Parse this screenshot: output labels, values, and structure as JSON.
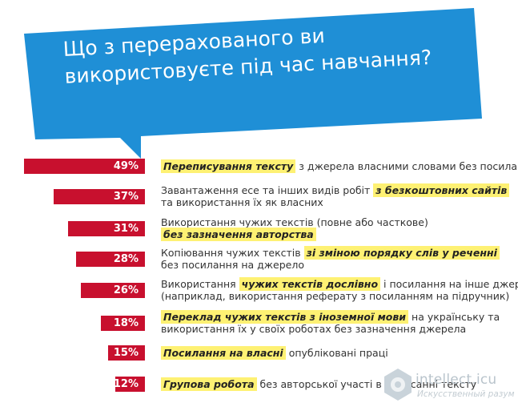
{
  "title_lines": [
    "Що з перерахованого ви",
    "використовуєте під час навчання?"
  ],
  "chart_data": {
    "type": "bar",
    "orientation": "horizontal",
    "unit": "%",
    "xlim": [
      0,
      50
    ],
    "grid": false,
    "legend": "none",
    "bar_color": "#c8102e",
    "highlight_color": "#fef173",
    "bars": [
      {
        "value": 49,
        "label": "49%",
        "lines": [
          [
            {
              "t": "Переписування тексту",
              "h": true
            },
            {
              "t": " з джерела власними словами без посилань",
              "h": false
            }
          ]
        ]
      },
      {
        "value": 37,
        "label": "37%",
        "lines": [
          [
            {
              "t": "Завантаження есе та інших видів робіт ",
              "h": false
            },
            {
              "t": "з безкоштовних сайтів",
              "h": true
            }
          ],
          [
            {
              "t": "та використання їх як власних",
              "h": false
            }
          ]
        ]
      },
      {
        "value": 31,
        "label": "31%",
        "lines": [
          [
            {
              "t": "Використання чужих текстів (повне або часткове)",
              "h": false
            }
          ],
          [
            {
              "t": "без зазначення авторства",
              "h": true
            }
          ]
        ]
      },
      {
        "value": 28,
        "label": "28%",
        "lines": [
          [
            {
              "t": "Копіювання чужих текстів ",
              "h": false
            },
            {
              "t": "зі зміною порядку слів у реченні",
              "h": true
            }
          ],
          [
            {
              "t": "без посилання на джерело",
              "h": false
            }
          ]
        ]
      },
      {
        "value": 26,
        "label": "26%",
        "lines": [
          [
            {
              "t": "Використання ",
              "h": false
            },
            {
              "t": "чужих текстів дослівно",
              "h": true
            },
            {
              "t": " і посилання на інше джерело",
              "h": false
            }
          ],
          [
            {
              "t": "(наприклад, використання реферату з посиланням на підручник)",
              "h": false
            }
          ]
        ]
      },
      {
        "value": 18,
        "label": "18%",
        "lines": [
          [
            {
              "t": "Переклад чужих текстів з іноземної мови",
              "h": true
            },
            {
              "t": " на українську та",
              "h": false
            }
          ],
          [
            {
              "t": "використання їх у своїх роботах без зазначення джерела",
              "h": false
            }
          ]
        ]
      },
      {
        "value": 15,
        "label": "15%",
        "lines": [
          [
            {
              "t": "Посилання на власні",
              "h": true
            },
            {
              "t": " опубліковані праці",
              "h": false
            }
          ]
        ]
      },
      {
        "value": 12,
        "label": "12%",
        "lines": [
          [
            {
              "t": "Групова робота",
              "h": true
            },
            {
              "t": " без авторської участі в написанні тексту",
              "h": false
            }
          ]
        ]
      }
    ]
  },
  "watermark": {
    "text": "intellect.icu",
    "subtext": "Искусственный разум"
  }
}
